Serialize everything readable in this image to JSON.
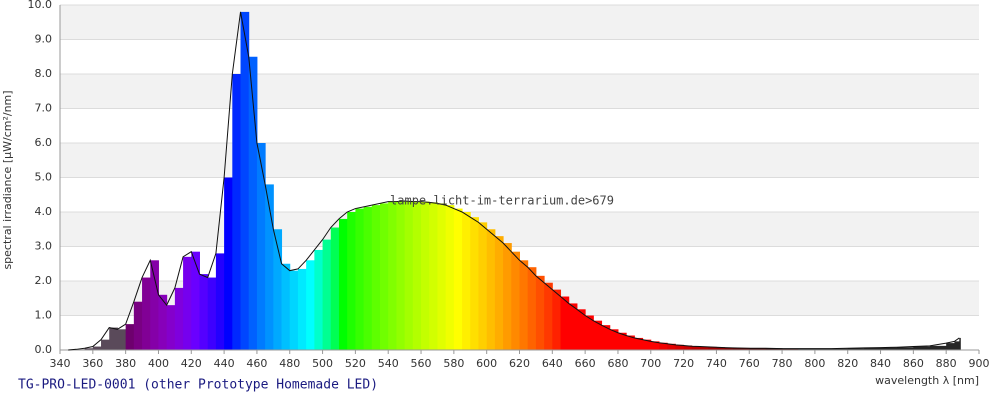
{
  "chart_data": {
    "type": "spectrum",
    "title": "TG-PRO-LED-0001 (other Prototype Homemade LED)",
    "watermark": "lampe.licht-im-terrarium.de>679",
    "x_label": "wavelength λ [nm]",
    "y_label": "spectral irradiance [µW/cm²/nm]",
    "x": [
      345,
      350,
      355,
      360,
      365,
      370,
      375,
      380,
      385,
      390,
      395,
      400,
      405,
      410,
      415,
      420,
      425,
      430,
      435,
      440,
      445,
      450,
      455,
      460,
      465,
      470,
      475,
      480,
      485,
      490,
      495,
      500,
      505,
      510,
      515,
      520,
      525,
      530,
      535,
      540,
      545,
      550,
      555,
      560,
      565,
      570,
      575,
      580,
      585,
      590,
      595,
      600,
      605,
      610,
      615,
      620,
      625,
      630,
      635,
      640,
      645,
      650,
      655,
      660,
      665,
      670,
      675,
      680,
      685,
      690,
      695,
      700,
      705,
      710,
      715,
      720,
      725,
      730,
      735,
      740,
      745,
      750,
      760,
      770,
      780,
      790,
      800,
      810,
      820,
      830,
      840,
      850,
      860,
      870,
      880,
      885,
      888
    ],
    "values": [
      0,
      0.02,
      0.05,
      0.1,
      0.3,
      0.65,
      0.6,
      0.75,
      1.4,
      2.1,
      2.6,
      1.6,
      1.3,
      1.8,
      2.7,
      2.85,
      2.2,
      2.1,
      2.8,
      5.0,
      8.0,
      9.8,
      8.5,
      6.0,
      4.8,
      3.5,
      2.5,
      2.3,
      2.35,
      2.6,
      2.9,
      3.2,
      3.55,
      3.8,
      4.0,
      4.1,
      4.15,
      4.2,
      4.25,
      4.3,
      4.3,
      4.32,
      4.3,
      4.3,
      4.28,
      4.25,
      4.2,
      4.1,
      4.0,
      3.85,
      3.7,
      3.5,
      3.3,
      3.1,
      2.85,
      2.6,
      2.4,
      2.15,
      1.95,
      1.75,
      1.55,
      1.35,
      1.18,
      1.0,
      0.85,
      0.72,
      0.6,
      0.5,
      0.42,
      0.35,
      0.3,
      0.25,
      0.21,
      0.18,
      0.15,
      0.13,
      0.11,
      0.1,
      0.09,
      0.08,
      0.07,
      0.06,
      0.05,
      0.05,
      0.04,
      0.04,
      0.04,
      0.04,
      0.05,
      0.06,
      0.07,
      0.08,
      0.1,
      0.12,
      0.2,
      0.25,
      0.35
    ],
    "xlim": [
      340,
      900
    ],
    "xticks": [
      340,
      360,
      380,
      400,
      420,
      440,
      460,
      480,
      500,
      520,
      540,
      560,
      580,
      600,
      620,
      640,
      660,
      680,
      700,
      720,
      740,
      760,
      780,
      800,
      820,
      840,
      860,
      880,
      900
    ],
    "ylim": [
      0,
      10
    ],
    "yticks": [
      {
        "value": 0,
        "label": "0.0"
      },
      {
        "value": 1,
        "label": "1.0"
      },
      {
        "value": 2,
        "label": "2.0"
      },
      {
        "value": 3,
        "label": "3.0"
      },
      {
        "value": 4,
        "label": "4.0"
      },
      {
        "value": 5,
        "label": "5.0"
      },
      {
        "value": 6,
        "label": "6.0"
      },
      {
        "value": 7,
        "label": "7.0"
      },
      {
        "value": 8,
        "label": "8.0"
      },
      {
        "value": 9,
        "label": "9.0"
      },
      {
        "value": 10,
        "label": "10.0"
      }
    ],
    "grid": true
  }
}
